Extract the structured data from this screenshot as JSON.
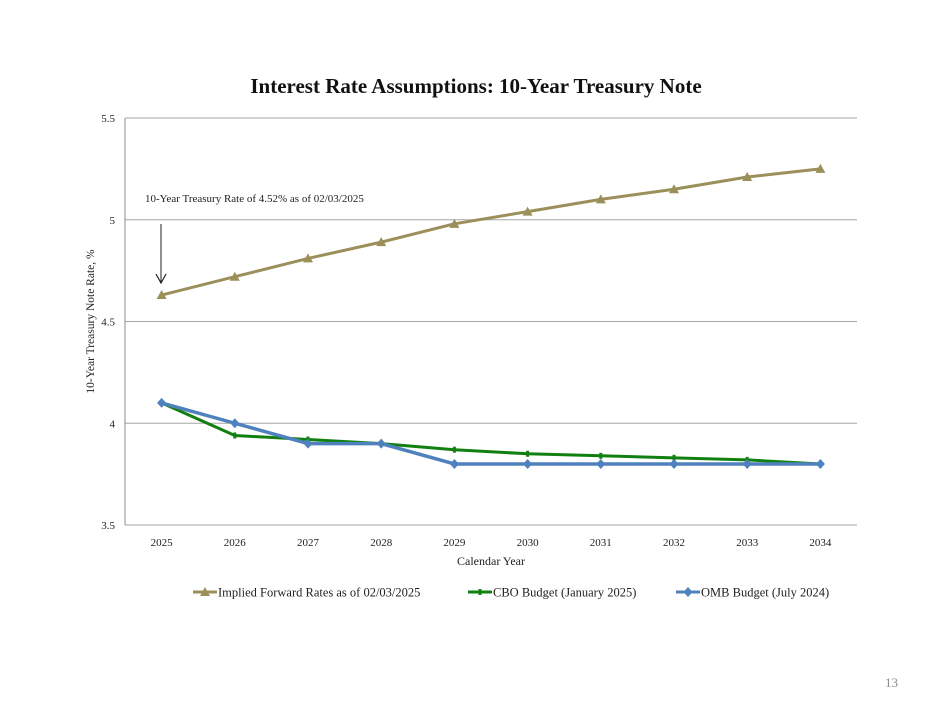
{
  "page": {
    "number": "13"
  },
  "chart_data": {
    "type": "line",
    "title": "Interest Rate Assumptions: 10-Year Treasury Note",
    "xlabel": "Calendar Year",
    "ylabel": "10-Year Treasury Note Rate, %",
    "ylim": [
      3.5,
      5.5
    ],
    "yticks": [
      3.5,
      4,
      4.5,
      5,
      5.5
    ],
    "ytick_labels": [
      "3.5",
      "4",
      "4.5",
      "5",
      "5.5"
    ],
    "grid": true,
    "legend_position": "bottom",
    "categories": [
      "2025",
      "2026",
      "2027",
      "2028",
      "2029",
      "2030",
      "2031",
      "2032",
      "2033",
      "2034"
    ],
    "series": [
      {
        "name": "Implied Forward Rates as of 02/03/2025",
        "color": "#9b8f5a",
        "marker": "triangle",
        "values": [
          4.63,
          4.72,
          4.81,
          4.89,
          4.98,
          5.04,
          5.1,
          5.15,
          5.21,
          5.25
        ]
      },
      {
        "name": "CBO Budget (January 2025)",
        "color": "#118011",
        "marker": "dash",
        "values": [
          4.1,
          3.94,
          3.92,
          3.9,
          3.87,
          3.85,
          3.84,
          3.83,
          3.82,
          3.8
        ]
      },
      {
        "name": "OMB Budget (July 2024)",
        "color": "#4f81bd",
        "marker": "diamond",
        "values": [
          4.1,
          4.0,
          3.9,
          3.9,
          3.8,
          3.8,
          3.8,
          3.8,
          3.8,
          3.8
        ]
      }
    ],
    "annotations": [
      {
        "text": "10-Year Treasury Rate of 4.52% as of 02/03/2025",
        "points_to": "2025"
      }
    ]
  }
}
